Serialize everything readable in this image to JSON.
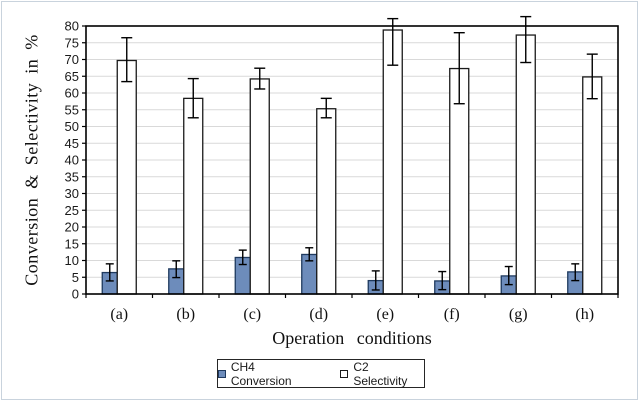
{
  "figure": {
    "type_label": "grouped bar chart with error bars"
  },
  "chart_data": {
    "type": "bar",
    "title": "",
    "xlabel": "Operation conditions",
    "ylabel": "Conversion & Selectivity in %",
    "categories": [
      "(a)",
      "(b)",
      "(c)",
      "(d)",
      "(e)",
      "(f)",
      "(g)",
      "(h)"
    ],
    "series": [
      {
        "name": "CH4 Conversion",
        "fill": "#6d8cbb",
        "border": "#1f3a5f",
        "values": [
          6.4,
          7.5,
          10.9,
          11.8,
          4.0,
          3.9,
          5.4,
          6.6
        ],
        "err_up": [
          2.6,
          2.4,
          2.2,
          2.0,
          2.9,
          2.8,
          2.8,
          2.4
        ],
        "err_down": [
          2.5,
          2.6,
          2.1,
          1.9,
          2.8,
          2.6,
          2.6,
          2.6
        ]
      },
      {
        "name": "C2 Selectivity",
        "fill": "#ffffff",
        "border": "#1a1a1a",
        "values": [
          69.7,
          58.4,
          64.2,
          55.3,
          78.8,
          67.3,
          77.3,
          64.8
        ],
        "err_up": [
          6.8,
          5.9,
          3.2,
          3.1,
          3.4,
          10.7,
          5.5,
          6.8
        ],
        "err_down": [
          6.3,
          5.8,
          3.0,
          2.7,
          10.5,
          10.5,
          8.2,
          6.5
        ]
      }
    ],
    "ylim": [
      0,
      80
    ],
    "ytick_step": 5,
    "grid": true,
    "gridline_color": "#d9d9d9",
    "axis_color": "#000000",
    "legend_position": "bottom"
  }
}
